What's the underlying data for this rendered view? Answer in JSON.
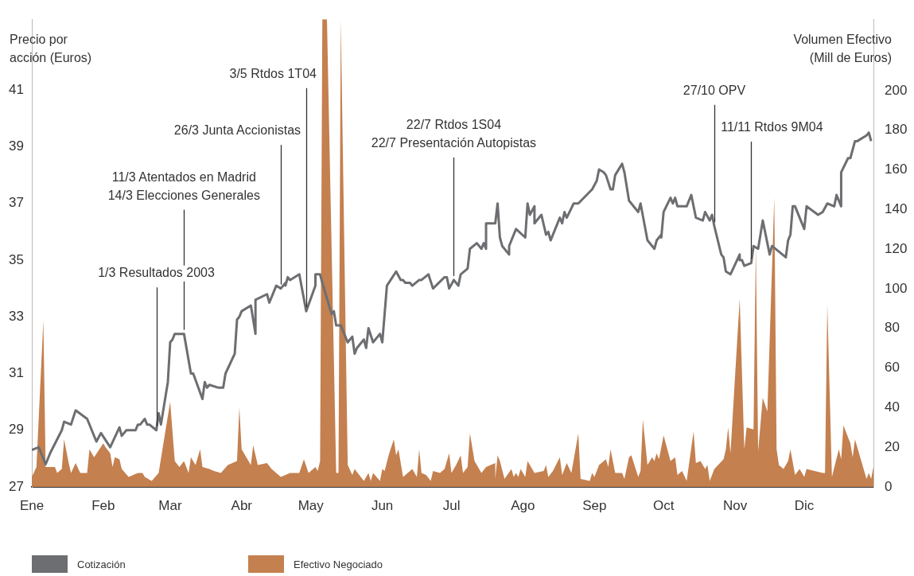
{
  "chart_data": {
    "type": "line",
    "ylabel": "Precio por\nacción (Euros)",
    "y2label": "Volumen Efectivo\n(Mill de Euros)",
    "xlim": [
      "--01-01",
      "--12-31"
    ],
    "xticks": [
      {
        "value": "--01-01",
        "label": "Ene"
      },
      {
        "value": "--02-01",
        "label": "Feb"
      },
      {
        "value": "--03-01",
        "label": "Mar"
      },
      {
        "value": "--04-01",
        "label": "Abr"
      },
      {
        "value": "--05-01",
        "label": "May"
      },
      {
        "value": "--06-01",
        "label": "Jun"
      },
      {
        "value": "--07-01",
        "label": "Jul"
      },
      {
        "value": "--08-01",
        "label": "Ago"
      },
      {
        "value": "--09-01",
        "label": "Sep"
      },
      {
        "value": "--10-01",
        "label": "Oct"
      },
      {
        "value": "--11-01",
        "label": "Nov"
      },
      {
        "value": "--12-01",
        "label": "Dic"
      }
    ],
    "ylim": [
      27,
      43.5
    ],
    "yticks": [
      27,
      29,
      31,
      33,
      35,
      37,
      39,
      41
    ],
    "y2lim": [
      0,
      236
    ],
    "y2ticks": [
      0,
      20,
      40,
      60,
      80,
      100,
      120,
      140,
      160,
      180,
      200
    ],
    "legend": "bottom left",
    "marker": "none",
    "line_style": "solid",
    "series": [
      {
        "name": "Efectivo Negociado",
        "type": "area",
        "axis": "y2",
        "color": "#c4804f",
        "x": [
          "--01-01",
          "--01-03",
          "--01-06",
          "--01-07",
          "--01-11",
          "--01-12",
          "--01-14",
          "--01-15",
          "--01-17",
          "--01-18",
          "--01-20",
          "--01-22",
          "--01-25",
          "--01-26",
          "--01-28",
          "--02-01",
          "--02-02",
          "--02-04",
          "--02-05",
          "--02-06",
          "--02-08",
          "--02-09",
          "--02-12",
          "--02-16",
          "--02-18",
          "--02-19",
          "--02-22",
          "--02-25",
          "--03-01",
          "--03-03",
          "--03-05",
          "--03-07",
          "--03-09",
          "--03-10",
          "--03-12",
          "--03-14",
          "--03-15",
          "--03-18",
          "--03-20",
          "--03-23",
          "--03-26",
          "--03-30",
          "--03-31",
          "--04-01",
          "--04-05",
          "--04-06",
          "--04-08",
          "--04-12",
          "--04-14",
          "--04-18",
          "--04-22",
          "--04-26",
          "--04-28",
          "--04-30",
          "--05-03",
          "--05-04",
          "--05-05",
          "--05-05",
          "--05-06",
          "--05-08",
          "--05-12",
          "--05-13",
          "--05-13",
          "--05-14",
          "--05-17",
          "--05-19",
          "--05-20",
          "--05-24",
          "--05-26",
          "--05-27",
          "--05-28",
          "--05-31",
          "--06-01",
          "--06-02",
          "--06-04",
          "--06-06",
          "--06-07",
          "--06-08",
          "--06-10",
          "--06-12",
          "--06-14",
          "--06-16",
          "--06-17",
          "--06-18",
          "--06-20",
          "--06-22",
          "--06-23",
          "--06-26",
          "--06-28",
          "--06-30",
          "--07-01",
          "--07-03",
          "--07-05",
          "--07-06",
          "--07-08",
          "--07-09",
          "--07-11",
          "--07-14",
          "--07-16",
          "--07-20",
          "--07-20",
          "--07-21",
          "--07-22",
          "--07-24",
          "--07-27",
          "--07-28",
          "--07-29",
          "--07-30",
          "--07-31",
          "--08-02",
          "--08-03",
          "--08-04",
          "--08-06",
          "--08-10",
          "--08-11",
          "--08-12",
          "--08-14",
          "--08-17",
          "--08-18",
          "--08-20",
          "--08-22",
          "--08-25",
          "--08-26",
          "--08-30",
          "--08-31",
          "--09-01",
          "--09-03",
          "--09-06",
          "--09-07",
          "--09-08",
          "--09-10",
          "--09-13",
          "--09-14",
          "--09-16",
          "--09-17",
          "--09-20",
          "--09-21",
          "--09-22",
          "--09-24",
          "--09-26",
          "--09-27",
          "--09-28",
          "--09-29",
          "--10-01",
          "--10-04",
          "--10-06",
          "--10-07",
          "--10-09",
          "--10-11",
          "--10-14",
          "--10-15",
          "--10-17",
          "--10-19",
          "--10-20",
          "--10-21",
          "--10-23",
          "--10-27",
          "--10-28",
          "--10-29",
          "--10-30",
          "--11-03",
          "--11-05",
          "--11-06",
          "--11-09",
          "--11-10",
          "--11-11",
          "--11-13",
          "--11-15",
          "--11-18",
          "--11-19",
          "--11-20",
          "--11-22",
          "--11-24",
          "--11-25",
          "--11-27",
          "--11-29",
          "--12-01",
          "--12-02",
          "--12-09",
          "--12-10",
          "--12-11",
          "--12-13",
          "--12-16",
          "--12-17",
          "--12-18",
          "--12-21",
          "--12-22",
          "--12-23",
          "--12-28",
          "--12-29",
          "--12-30",
          "--12-31"
        ],
        "values": [
          5,
          10,
          84,
          10,
          10,
          7,
          9,
          24,
          12,
          7,
          12,
          7,
          7,
          19,
          15,
          22,
          20,
          17,
          10,
          15,
          14,
          9,
          5,
          7,
          7,
          5,
          3,
          7,
          43,
          13,
          10,
          13,
          7,
          15,
          11,
          19,
          10,
          9,
          8,
          7,
          11,
          13,
          40,
          19,
          11,
          21,
          11,
          12,
          9,
          5,
          7,
          7,
          14,
          7,
          10,
          8,
          13,
          8,
          236,
          236,
          7,
          7,
          7,
          236,
          11,
          6,
          9,
          3,
          7,
          3,
          7,
          3,
          9,
          8,
          17,
          24,
          16,
          19,
          5,
          7,
          9,
          5,
          19,
          7,
          6,
          3,
          8,
          7,
          9,
          17,
          7,
          11,
          16,
          7,
          10,
          27,
          13,
          7,
          10,
          12,
          4,
          16,
          13,
          4,
          9,
          5,
          7,
          5,
          9,
          5,
          13,
          11,
          7,
          8,
          11,
          5,
          8,
          15,
          6,
          12,
          7,
          27,
          4,
          3,
          7,
          5,
          11,
          14,
          10,
          19,
          7,
          7,
          4,
          15,
          16,
          5,
          8,
          34,
          11,
          15,
          13,
          17,
          14,
          26,
          13,
          15,
          6,
          8,
          3,
          28,
          12,
          13,
          9,
          11,
          3,
          9,
          14,
          19,
          30,
          17,
          95,
          19,
          30,
          29,
          122,
          18,
          45,
          38,
          146,
          19,
          11,
          9,
          13,
          19,
          6,
          9,
          5,
          9,
          7,
          7,
          92,
          5,
          19,
          14,
          31,
          22,
          15,
          24,
          4,
          7,
          4,
          10
        ]
      },
      {
        "name": "Cotización",
        "type": "line",
        "color": "#6d6e71",
        "x": [
          "--01-01",
          "--01-04",
          "--01-07",
          "--01-09",
          "--01-14",
          "--01-15",
          "--01-18",
          "--01-20",
          "--01-25",
          "--01-29",
          "--01-31",
          "--02-04",
          "--02-08",
          "--02-09",
          "--02-11",
          "--02-15",
          "--02-16",
          "--02-17",
          "--02-19",
          "--02-20",
          "--02-21",
          "--02-24",
          "--02-25",
          "--02-26",
          "--02-29",
          "--03-01",
          "--03-02",
          "--03-03",
          "--03-07",
          "--03-10",
          "--03-11",
          "--03-15",
          "--03-16",
          "--03-17",
          "--03-18",
          "--03-22",
          "--03-24",
          "--03-25",
          "--03-29",
          "--03-30",
          "--03-31",
          "--04-01",
          "--04-05",
          "--04-07",
          "--04-07",
          "--04-12",
          "--04-13",
          "--04-16",
          "--04-18",
          "--04-20",
          "--04-20",
          "--04-21",
          "--04-22",
          "--04-26",
          "--04-29",
          "--05-03",
          "--05-03",
          "--05-05",
          "--05-06",
          "--05-10",
          "--05-11",
          "--05-12",
          "--05-14",
          "--05-17",
          "--05-19",
          "--05-20",
          "--05-21",
          "--05-24",
          "--05-25",
          "--05-26",
          "--05-28",
          "--05-31",
          "--06-01",
          "--06-03",
          "--06-07",
          "--06-09",
          "--06-10",
          "--06-11",
          "--06-13",
          "--06-14",
          "--06-17",
          "--06-18",
          "--06-21",
          "--06-23",
          "--06-28",
          "--06-29",
          "--06-30",
          "--07-02",
          "--07-04",
          "--07-05",
          "--07-08",
          "--07-09",
          "--07-12",
          "--07-14",
          "--07-15",
          "--07-16",
          "--07-16",
          "--07-20",
          "--07-21",
          "--07-22",
          "--07-23",
          "--07-26",
          "--07-26",
          "--07-29",
          "--08-02",
          "--08-03",
          "--08-04",
          "--08-06",
          "--08-06",
          "--08-09",
          "--08-11",
          "--08-12",
          "--08-13",
          "--08-17",
          "--08-18",
          "--08-19",
          "--08-20",
          "--08-23",
          "--08-25",
          "--08-31",
          "--09-02",
          "--09-03",
          "--09-05",
          "--09-06",
          "--09-08",
          "--09-09",
          "--09-10",
          "--09-13",
          "--09-14",
          "--09-16",
          "--09-20",
          "--09-21",
          "--09-24",
          "--09-27",
          "--09-28",
          "--09-30",
          "--09-30",
          "--10-01",
          "--10-04",
          "--10-05",
          "--10-06",
          "--10-07",
          "--10-11",
          "--10-13",
          "--10-15",
          "--10-18",
          "--10-19",
          "--10-21",
          "--10-22",
          "--10-23",
          "--10-26",
          "--10-27",
          "--10-28",
          "--10-30",
          "--11-03",
          "--11-03",
          "--11-04",
          "--11-05",
          "--11-08",
          "--11-09",
          "--11-11",
          "--11-13",
          "--11-16",
          "--11-17",
          "--11-23",
          "--11-24",
          "--11-25",
          "--11-26",
          "--11-27",
          "--12-01",
          "--12-02",
          "--12-07",
          "--12-09",
          "--12-11",
          "--12-14",
          "--12-15",
          "--12-17",
          "--12-17",
          "--12-20",
          "--12-21",
          "--12-23",
          "--12-24",
          "--12-28",
          "--12-29",
          "--12-30"
        ],
        "values": [
          28.3,
          28.4,
          27.8,
          28.2,
          29,
          29.3,
          29.2,
          29.7,
          29.4,
          28.6,
          28.9,
          28.4,
          29.1,
          28.8,
          29,
          29,
          29.2,
          29.2,
          29.4,
          29.2,
          29.2,
          29,
          29.6,
          29.2,
          30.7,
          32.1,
          32.2,
          32.4,
          32.4,
          31,
          31,
          30.1,
          30.7,
          30.5,
          30.6,
          30.5,
          30.5,
          31,
          31.7,
          32.9,
          33,
          33.2,
          33.4,
          32.4,
          33.6,
          33.8,
          33.5,
          34.1,
          34,
          34.2,
          34.1,
          34.4,
          34.3,
          34.5,
          33.2,
          34.1,
          34.5,
          34.5,
          34.2,
          33.1,
          33.2,
          32.7,
          32.7,
          32.1,
          32.3,
          31.7,
          31.9,
          32.2,
          31.9,
          32.6,
          32.1,
          32.4,
          32.1,
          34.1,
          34.6,
          34.3,
          34.3,
          34.2,
          34.2,
          34.1,
          34.3,
          34.3,
          34.5,
          34,
          34.4,
          34.4,
          34,
          34.3,
          34.1,
          34.5,
          34.7,
          35.4,
          35.6,
          35.4,
          35.6,
          35.4,
          36.3,
          36.3,
          37,
          35.8,
          35.5,
          35.2,
          35.5,
          36.1,
          35.8,
          37,
          36.6,
          36.9,
          36.3,
          36.6,
          35.9,
          36,
          35.7,
          36.5,
          36.3,
          36.7,
          36.5,
          37,
          37,
          37.5,
          37.8,
          38.2,
          38.1,
          38,
          37.5,
          37.5,
          38,
          38.4,
          38.1,
          37.1,
          36.7,
          37,
          35.7,
          35.4,
          35.7,
          35.9,
          35.8,
          36.7,
          37.2,
          37,
          37.2,
          36.9,
          36.9,
          37.3,
          36.5,
          36.4,
          36.7,
          36.4,
          36.6,
          36.2,
          35.2,
          35.1,
          34.6,
          34.5,
          35.2,
          35,
          35,
          34.8,
          34.9,
          35.5,
          35.4,
          36.4,
          35.2,
          35.5,
          35.1,
          35.7,
          35.9,
          36.9,
          36.9,
          36.1,
          36.9,
          36.6,
          36.7,
          37,
          36.9,
          37.3,
          36.9,
          38.1,
          38.6,
          38.6,
          39.2,
          39.2,
          39.4,
          39.5,
          39.2
        ]
      }
    ],
    "annotations": [
      {
        "text": "1/3 Resultados 2003",
        "x": "--02-24",
        "y": 29
      },
      {
        "text": "11/3 Atentados en Madrid\n14/3 Elecciones Generales",
        "x": "--03-07",
        "y": 32.4
      },
      {
        "text": "26/3 Junta Accionistas",
        "x": "--04-18",
        "y": 34
      },
      {
        "text": "3/5 Rtdos 1T04",
        "x": "--04-29",
        "y": 33.2
      },
      {
        "text": "22/7 Rtdos 1S04\n22/7 Presentación Autopistas",
        "x": "--07-02",
        "y": 34.3
      },
      {
        "text": "27/10 OPV",
        "x": "--10-23",
        "y": 36.2
      },
      {
        "text": "11/11 Rtdos 9M04",
        "x": "--11-08",
        "y": 34.9
      }
    ]
  }
}
